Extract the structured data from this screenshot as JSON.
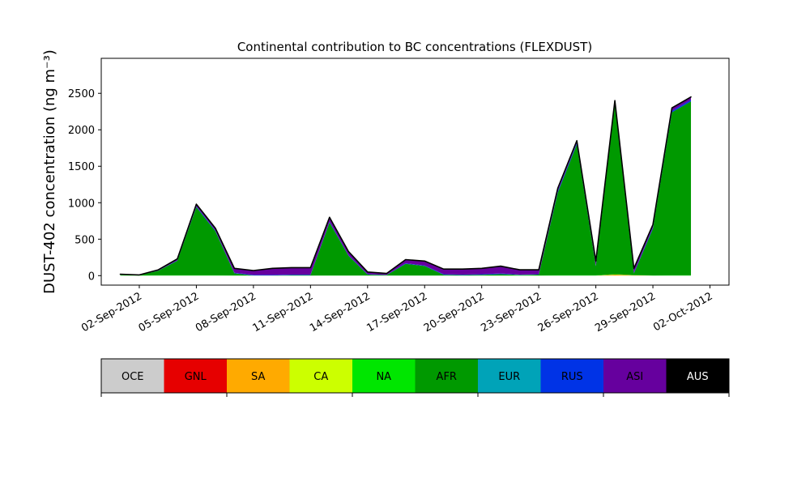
{
  "chart_data": {
    "type": "stacked_area",
    "title": "Continental contribution to BC concentrations (FLEXDUST)",
    "ylabel": "DUST-402 concentration (ng m⁻³)",
    "x": [
      "2012-09-01",
      "2012-09-02",
      "2012-09-03",
      "2012-09-04",
      "2012-09-05",
      "2012-09-06",
      "2012-09-07",
      "2012-09-08",
      "2012-09-09",
      "2012-09-10",
      "2012-09-11",
      "2012-09-12",
      "2012-09-13",
      "2012-09-14",
      "2012-09-15",
      "2012-09-16",
      "2012-09-17",
      "2012-09-18",
      "2012-09-19",
      "2012-09-20",
      "2012-09-21",
      "2012-09-22",
      "2012-09-23",
      "2012-09-24",
      "2012-09-25",
      "2012-09-26",
      "2012-09-27",
      "2012-09-28",
      "2012-09-29",
      "2012-09-30",
      "2012-10-01"
    ],
    "xlim": [
      "2012-08-31",
      "2012-10-03"
    ],
    "xticks": [
      {
        "value": "2012-09-02",
        "label": "02-Sep-2012"
      },
      {
        "value": "2012-09-05",
        "label": "05-Sep-2012"
      },
      {
        "value": "2012-09-08",
        "label": "08-Sep-2012"
      },
      {
        "value": "2012-09-11",
        "label": "11-Sep-2012"
      },
      {
        "value": "2012-09-14",
        "label": "14-Sep-2012"
      },
      {
        "value": "2012-09-17",
        "label": "17-Sep-2012"
      },
      {
        "value": "2012-09-20",
        "label": "20-Sep-2012"
      },
      {
        "value": "2012-09-23",
        "label": "23-Sep-2012"
      },
      {
        "value": "2012-09-26",
        "label": "26-Sep-2012"
      },
      {
        "value": "2012-09-29",
        "label": "29-Sep-2012"
      },
      {
        "value": "2012-10-02",
        "label": "02-Oct-2012"
      }
    ],
    "ylim": [
      -130,
      2980
    ],
    "yticks": [
      0,
      500,
      1000,
      1500,
      2000,
      2500
    ],
    "series": [
      {
        "name": "OCE",
        "color": "#cccccc",
        "values": [
          0,
          0,
          0,
          0,
          0,
          0,
          0,
          0,
          0,
          0,
          0,
          0,
          0,
          0,
          0,
          0,
          0,
          0,
          0,
          0,
          0,
          0,
          0,
          0,
          0,
          0,
          0,
          0,
          0,
          0,
          0
        ]
      },
      {
        "name": "GNL",
        "color": "#e60000",
        "values": [
          0,
          0,
          0,
          0,
          0,
          0,
          0,
          0,
          0,
          0,
          0,
          0,
          0,
          0,
          0,
          0,
          0,
          0,
          0,
          0,
          0,
          0,
          0,
          0,
          0,
          0,
          0,
          0,
          0,
          0,
          0
        ]
      },
      {
        "name": "SA",
        "color": "#ffaa00",
        "values": [
          0,
          0,
          0,
          0,
          0,
          0,
          0,
          0,
          0,
          0,
          0,
          0,
          0,
          0,
          0,
          0,
          0,
          0,
          0,
          0,
          0,
          0,
          0,
          0,
          0,
          0,
          15,
          5,
          0,
          0,
          0
        ]
      },
      {
        "name": "CA",
        "color": "#ccff00",
        "values": [
          0,
          0,
          0,
          0,
          0,
          0,
          0,
          0,
          0,
          0,
          0,
          0,
          0,
          0,
          0,
          0,
          0,
          0,
          0,
          0,
          0,
          0,
          0,
          0,
          0,
          0,
          0,
          0,
          0,
          0,
          0
        ]
      },
      {
        "name": "NA",
        "color": "#00e600",
        "values": [
          5,
          3,
          5,
          5,
          5,
          5,
          3,
          2,
          1,
          1,
          1,
          3,
          2,
          2,
          2,
          2,
          2,
          2,
          2,
          2,
          2,
          5,
          3,
          5,
          5,
          5,
          5,
          3,
          3,
          5,
          5
        ]
      },
      {
        "name": "AFR",
        "color": "#009900",
        "values": [
          8,
          3,
          62,
          200,
          935,
          605,
          29,
          0,
          1,
          6,
          6,
          727,
          270,
          13,
          5,
          160,
          130,
          10,
          5,
          10,
          18,
          5,
          12,
          1135,
          1795,
          125,
          2330,
          22,
          642,
          2235,
          2385
        ]
      },
      {
        "name": "EUR",
        "color": "#00a3b8",
        "values": [
          0,
          0,
          0,
          0,
          0,
          0,
          0,
          0,
          0,
          0,
          0,
          0,
          0,
          0,
          0,
          0,
          0,
          0,
          0,
          0,
          0,
          0,
          0,
          0,
          0,
          0,
          0,
          0,
          0,
          0,
          0
        ]
      },
      {
        "name": "RUS",
        "color": "#0033e6",
        "values": [
          2,
          1,
          3,
          5,
          10,
          10,
          8,
          8,
          8,
          8,
          8,
          10,
          8,
          5,
          3,
          8,
          8,
          8,
          8,
          8,
          10,
          5,
          5,
          20,
          20,
          10,
          20,
          10,
          15,
          20,
          20
        ]
      },
      {
        "name": "ASI",
        "color": "#66009e",
        "values": [
          5,
          3,
          10,
          20,
          30,
          30,
          60,
          60,
          90,
          95,
          95,
          60,
          50,
          30,
          20,
          50,
          60,
          70,
          75,
          80,
          100,
          65,
          60,
          40,
          30,
          60,
          30,
          60,
          40,
          40,
          40
        ]
      },
      {
        "name": "AUS",
        "color": "#000000",
        "values": [
          0,
          0,
          0,
          0,
          0,
          0,
          0,
          0,
          0,
          0,
          0,
          0,
          0,
          0,
          0,
          0,
          0,
          0,
          0,
          0,
          0,
          0,
          0,
          0,
          0,
          0,
          0,
          0,
          0,
          0,
          0
        ]
      }
    ]
  }
}
